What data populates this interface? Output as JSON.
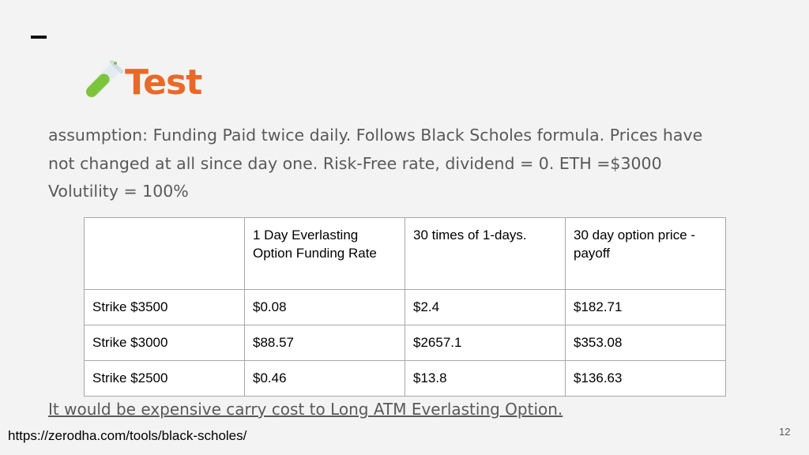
{
  "title": "Test",
  "title_icon": "test-tube-icon",
  "colors": {
    "title": "#e8692a",
    "background": "#f3f3f3"
  },
  "body_lines": [
    "assumption:  Funding Paid twice daily. Follows Black Scholes formula. Prices have",
    "not changed at all since day one. Risk-Free rate, dividend = 0. ETH =$3000",
    "Volutility = 100%"
  ],
  "table": {
    "headers": [
      "",
      "1 Day Everlasting Option Funding Rate",
      "30 times of 1-days.",
      "30 day option price  -  payoff"
    ],
    "rows": [
      [
        "Strike $3500",
        "$0.08",
        "$2.4",
        "$182.71"
      ],
      [
        "Strike $3000",
        "$88.57",
        "$2657.1",
        "$353.08"
      ],
      [
        "Strike $2500",
        "$0.46",
        "$13.8",
        "$136.63"
      ]
    ]
  },
  "conclusion": "It would be expensive carry cost to Long ATM Everlasting Option.",
  "source_link": "https://zerodha.com/tools/black-scholes/",
  "page_number": "12"
}
